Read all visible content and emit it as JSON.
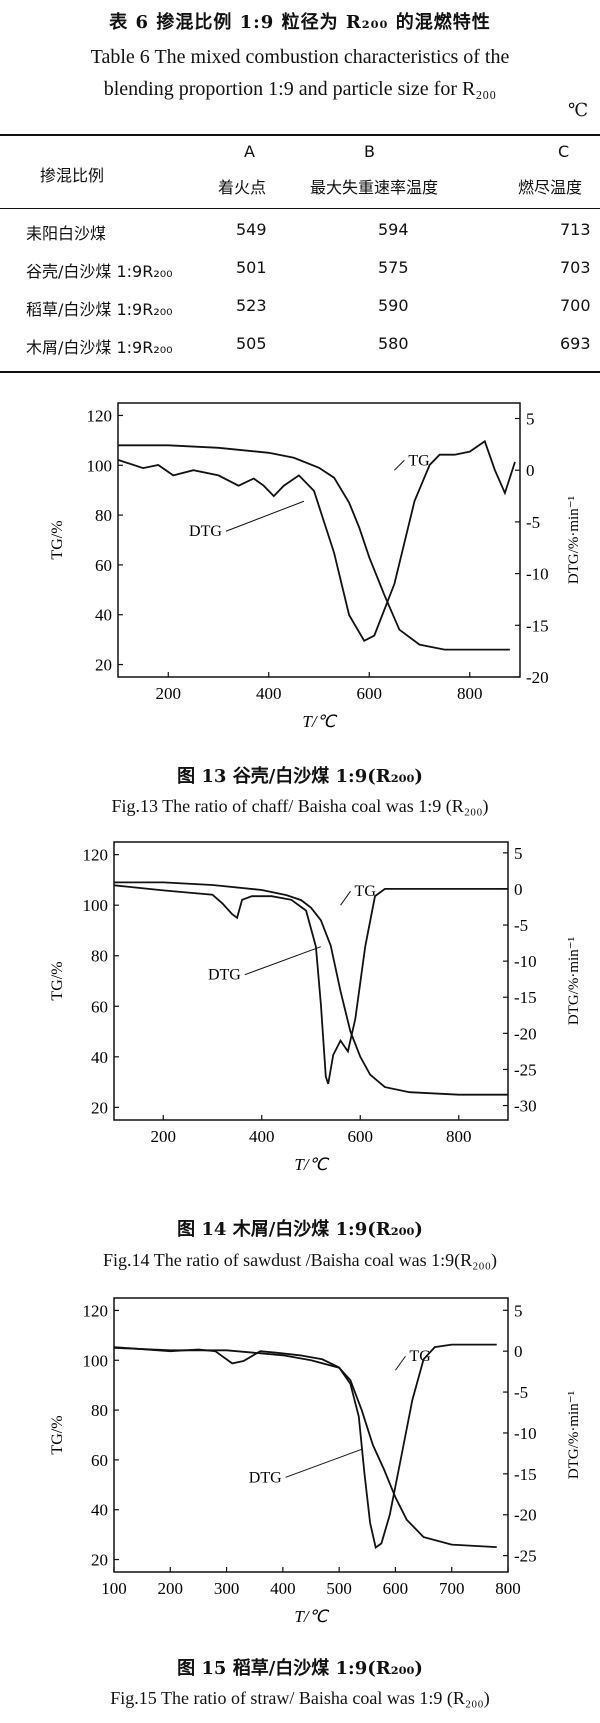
{
  "table6": {
    "title_cn": "表 6   掺混比例 1:9 粒径为 R₂₀₀ 的混燃特性",
    "title_en_line1": "Table 6 The mixed combustion characteristics of the",
    "title_en_line2": "blending proportion 1:9 and particle size for R₂₀₀",
    "unit": "℃",
    "header": {
      "row_label": "掺混比例",
      "col_letters": [
        "A",
        "B",
        "C"
      ],
      "col_names": [
        "着火点",
        "最大失重速率温度",
        "燃尽温度"
      ]
    },
    "rows": [
      {
        "label": "耒阳白沙煤",
        "values": [
          "549",
          "594",
          "713"
        ]
      },
      {
        "label": "谷壳/白沙煤 1:9R₂₀₀",
        "values": [
          "501",
          "575",
          "703"
        ]
      },
      {
        "label": "稻草/白沙煤 1:9R₂₀₀",
        "values": [
          "523",
          "590",
          "700"
        ]
      },
      {
        "label": "木屑/白沙煤 1:9R₂₀₀",
        "values": [
          "505",
          "580",
          "693"
        ]
      }
    ]
  },
  "figures": [
    {
      "caption_cn": "图 13   谷壳/白沙煤 1:9(R₂₀₀)",
      "caption_en": "Fig.13  The ratio of chaff/ Baisha coal was 1:9 (R₂₀₀)"
    },
    {
      "caption_cn": "图 14   木屑/白沙煤 1:9(R₂₀₀)",
      "caption_en": "Fig.14 The ratio of sawdust /Baisha coal was 1:9(R₂₀₀)"
    },
    {
      "caption_cn": "图 15   稻草/白沙煤 1:9(R₂₀₀)",
      "caption_en": "Fig.15  The ratio of straw/ Baisha coal was 1:9 (R₂₀₀)"
    }
  ],
  "chart_data": [
    {
      "type": "line",
      "xlabel": "T/℃",
      "ylabel": "TG/%",
      "y2label": "DTG/%·min⁻¹",
      "xticks": [
        200,
        400,
        600,
        800
      ],
      "yticks": [
        20,
        40,
        60,
        80,
        100,
        120
      ],
      "y2ticks": [
        5,
        0,
        -5,
        -10,
        -15,
        -20
      ],
      "xlim": [
        100,
        900
      ],
      "ylim": [
        15,
        125
      ],
      "y2lim": [
        -20,
        6.5
      ],
      "series": [
        {
          "name": "TG",
          "axis": "left",
          "x": [
            100,
            200,
            300,
            400,
            450,
            500,
            530,
            560,
            580,
            600,
            630,
            660,
            700,
            750,
            800,
            850,
            880
          ],
          "y": [
            108,
            108,
            107,
            105,
            103,
            99,
            95,
            85,
            75,
            63,
            48,
            34,
            28,
            26,
            26,
            26,
            26
          ]
        },
        {
          "name": "DTG",
          "axis": "right",
          "x": [
            100,
            150,
            180,
            210,
            250,
            300,
            340,
            370,
            390,
            410,
            430,
            460,
            490,
            530,
            560,
            590,
            610,
            650,
            690,
            720,
            740,
            770,
            800,
            830,
            850,
            870,
            890
          ],
          "y": [
            1,
            0.2,
            0.5,
            -0.5,
            0,
            -0.5,
            -1.5,
            -0.8,
            -1.5,
            -2.5,
            -1.5,
            -0.5,
            -2,
            -8,
            -14,
            -16.5,
            -16,
            -11,
            -3,
            0.5,
            1.5,
            1.5,
            1.8,
            2.8,
            0,
            -2.2,
            0.8
          ]
        }
      ]
    },
    {
      "type": "line",
      "xlabel": "T/℃",
      "ylabel": "TG/%",
      "y2label": "DTG/%·min⁻¹",
      "xticks": [
        200,
        400,
        600,
        800
      ],
      "yticks": [
        20,
        40,
        60,
        80,
        100,
        120
      ],
      "y2ticks": [
        5,
        0,
        -5,
        -10,
        -15,
        -20,
        -25,
        -30
      ],
      "xlim": [
        100,
        900
      ],
      "ylim": [
        15,
        125
      ],
      "y2lim": [
        -32,
        6.5
      ],
      "series": [
        {
          "name": "TG",
          "axis": "left",
          "x": [
            100,
            200,
            300,
            400,
            450,
            480,
            500,
            520,
            540,
            560,
            580,
            600,
            620,
            650,
            700,
            800,
            900
          ],
          "y": [
            109,
            109,
            108,
            106,
            104,
            102,
            99,
            94,
            84,
            66,
            50,
            40,
            33,
            28,
            26,
            25,
            25
          ]
        },
        {
          "name": "DTG",
          "axis": "right",
          "x": [
            100,
            200,
            300,
            320,
            340,
            350,
            360,
            380,
            420,
            460,
            490,
            510,
            520,
            530,
            535,
            545,
            560,
            575,
            590,
            610,
            630,
            650,
            700,
            800,
            900
          ],
          "y": [
            0.5,
            -0.2,
            -0.8,
            -2,
            -3.5,
            -4,
            -1.5,
            -1,
            -1,
            -1.5,
            -3,
            -8,
            -16,
            -26,
            -27,
            -23,
            -21,
            -22.5,
            -18,
            -8,
            -1,
            0,
            0,
            0,
            0
          ]
        }
      ]
    },
    {
      "type": "line",
      "xlabel": "T/℃",
      "ylabel": "TG/%",
      "y2label": "DTG/%·min⁻¹",
      "xticks": [
        100,
        200,
        300,
        400,
        500,
        600,
        700,
        800
      ],
      "yticks": [
        20,
        40,
        60,
        80,
        100,
        120
      ],
      "y2ticks": [
        5,
        0,
        -5,
        -10,
        -15,
        -20,
        -25
      ],
      "xlim": [
        100,
        800
      ],
      "ylim": [
        15,
        125
      ],
      "y2lim": [
        -27,
        6.5
      ],
      "series": [
        {
          "name": "TG",
          "axis": "left",
          "x": [
            100,
            200,
            300,
            400,
            450,
            500,
            520,
            540,
            560,
            580,
            600,
            620,
            650,
            700,
            780
          ],
          "y": [
            105,
            104,
            104,
            102,
            100,
            97,
            92,
            80,
            66,
            56,
            45,
            36,
            29,
            26,
            25
          ]
        },
        {
          "name": "DTG",
          "axis": "right",
          "x": [
            100,
            200,
            250,
            280,
            310,
            330,
            360,
            390,
            430,
            470,
            500,
            520,
            535,
            545,
            555,
            565,
            575,
            590,
            610,
            630,
            650,
            670,
            700,
            750,
            780
          ],
          "y": [
            0.5,
            0,
            0.2,
            0,
            -1.5,
            -1.2,
            0,
            -0.2,
            -0.5,
            -1,
            -2,
            -4,
            -8,
            -15,
            -21,
            -24,
            -23.5,
            -20,
            -13,
            -6,
            -1,
            0.5,
            0.8,
            0.8,
            0.8
          ]
        }
      ]
    }
  ]
}
